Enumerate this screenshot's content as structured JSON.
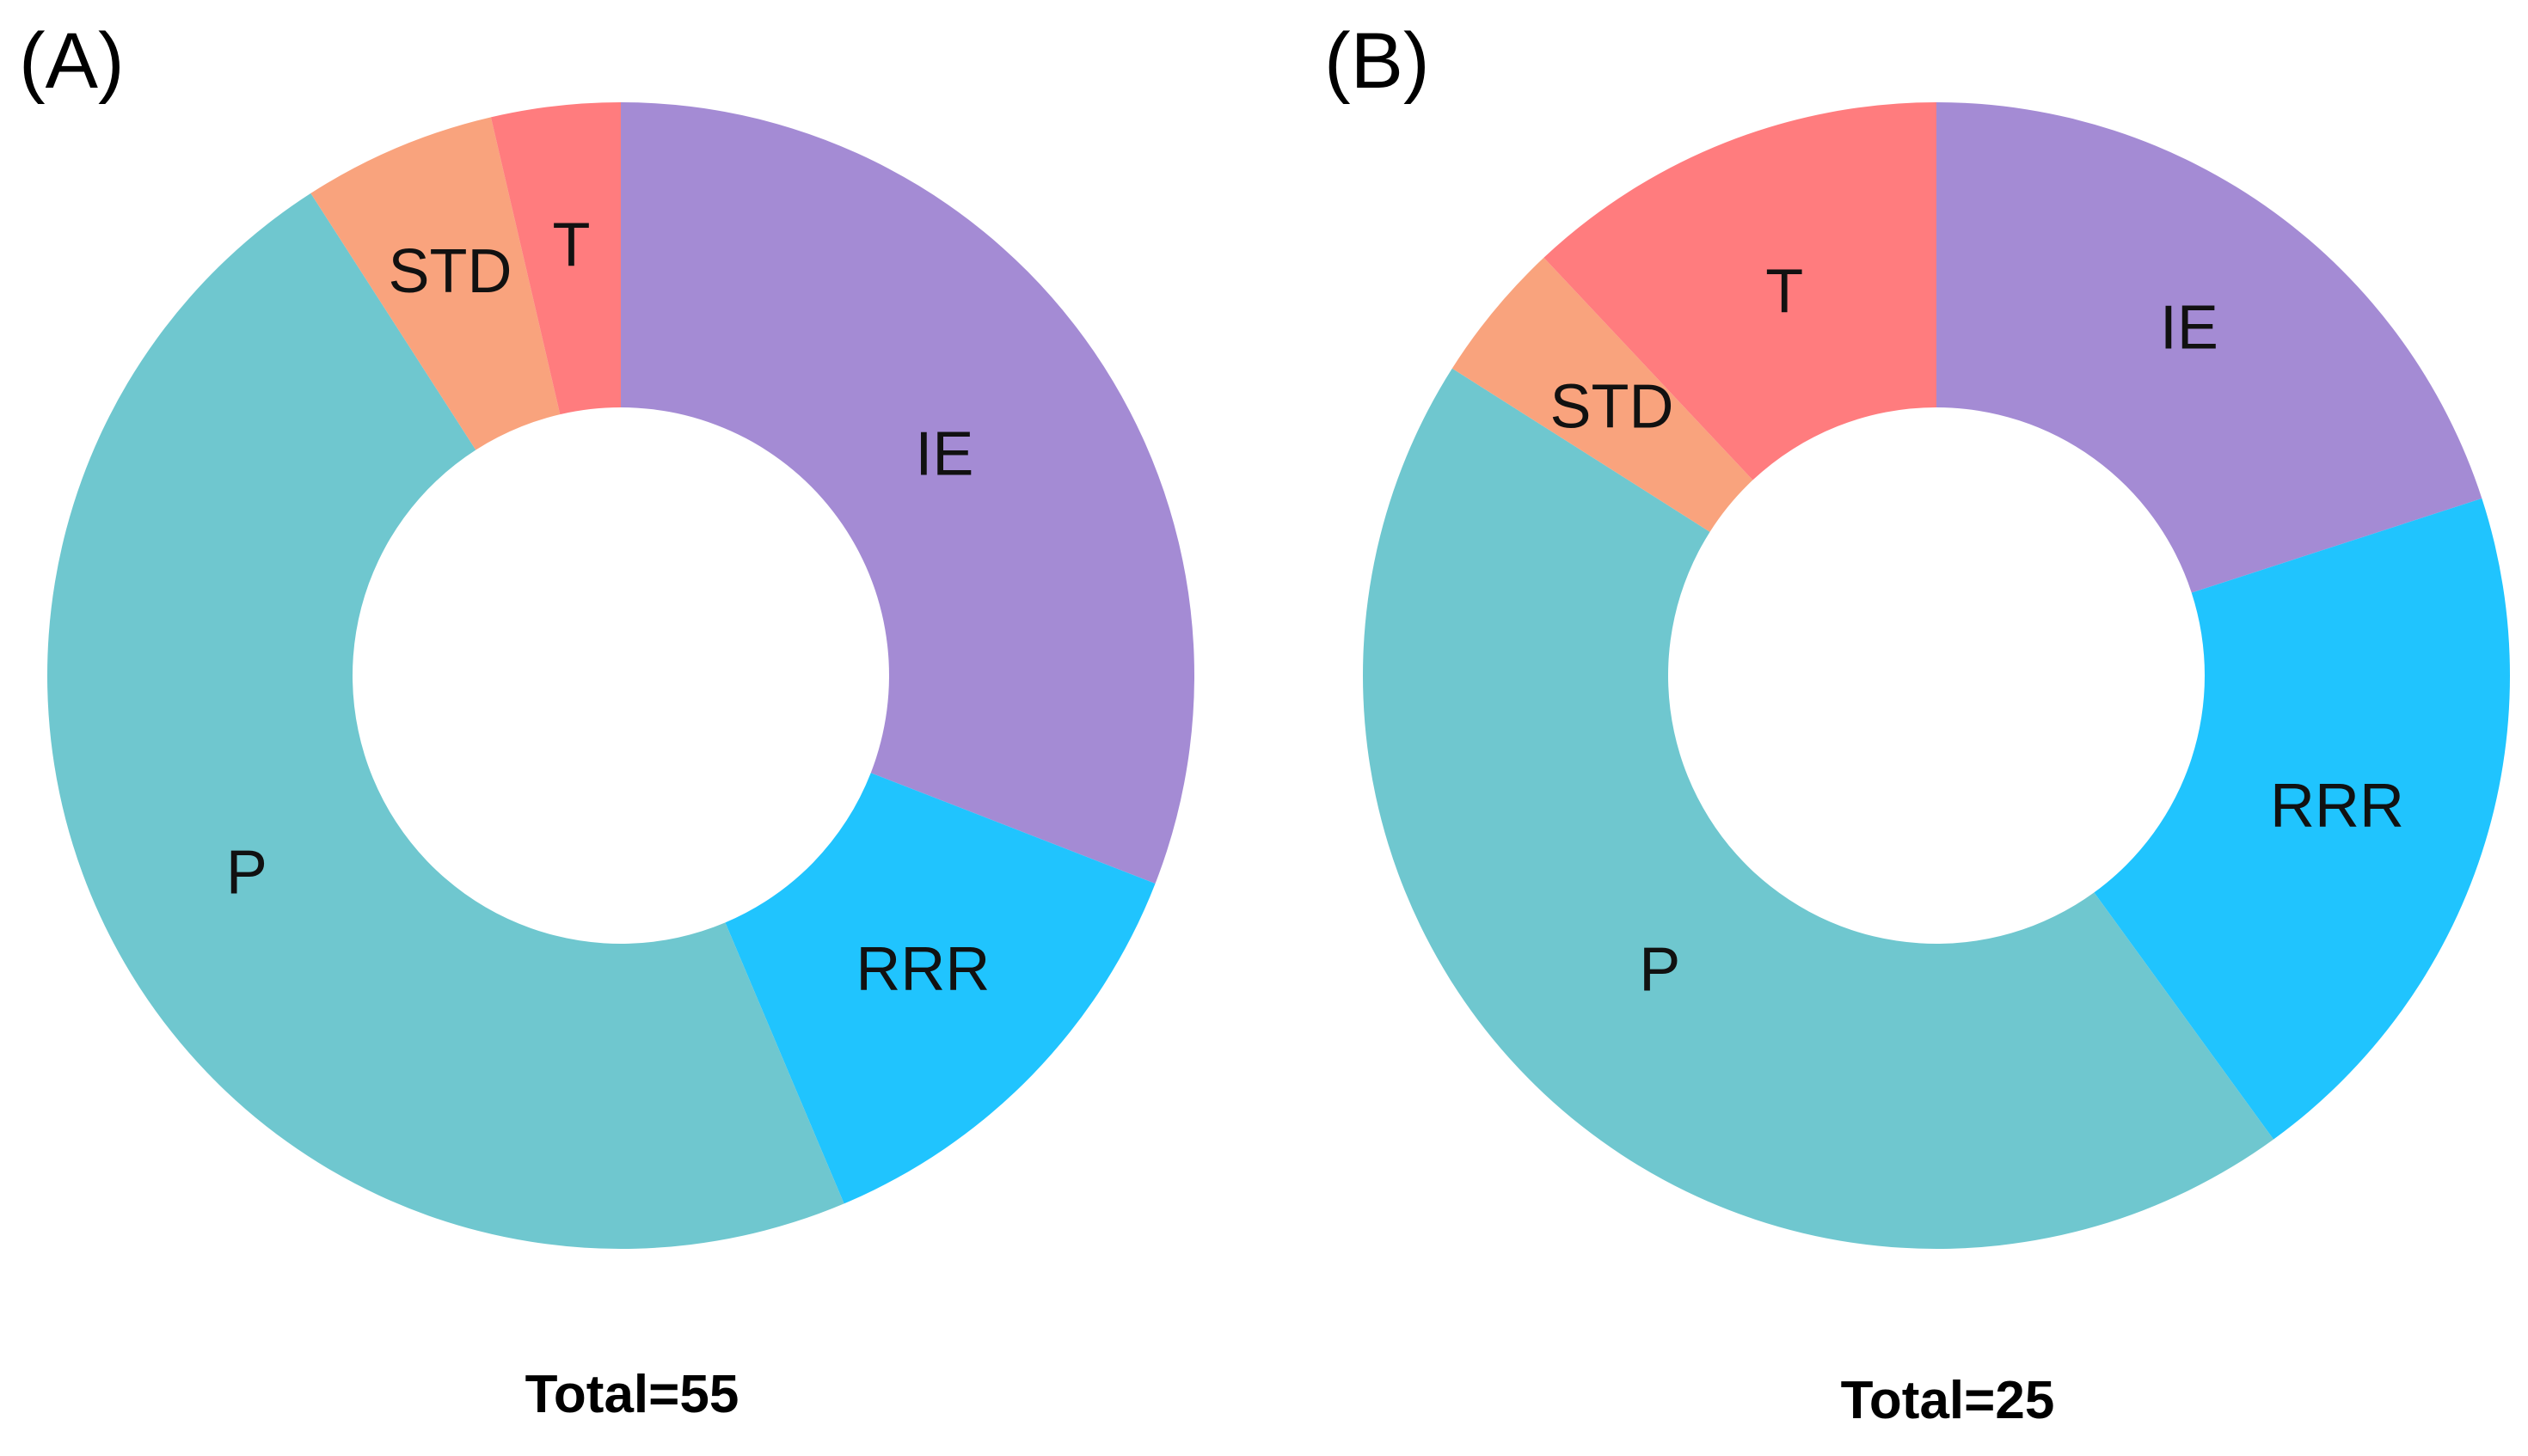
{
  "chart_data": [
    {
      "type": "pie",
      "variant": "donut",
      "panel_label": "(A)",
      "total_label": "Total=55",
      "total": 55,
      "categories": [
        "IE",
        "RRR",
        "P",
        "STD",
        "T"
      ],
      "values": [
        17,
        7,
        26,
        3,
        2
      ],
      "colors": [
        "#A48BD4",
        "#20C4FE",
        "#6FC7CF",
        "#F9A37D",
        "#FF7C7E"
      ]
    },
    {
      "type": "pie",
      "variant": "donut",
      "panel_label": "(B)",
      "total_label": "Total=25",
      "total": 25,
      "categories": [
        "IE",
        "RRR",
        "P",
        "STD",
        "T"
      ],
      "values": [
        5,
        5,
        11,
        1,
        3
      ],
      "colors": [
        "#A48BD4",
        "#20C4FE",
        "#6FC7CF",
        "#F9A37D",
        "#FF7C7E"
      ]
    }
  ]
}
